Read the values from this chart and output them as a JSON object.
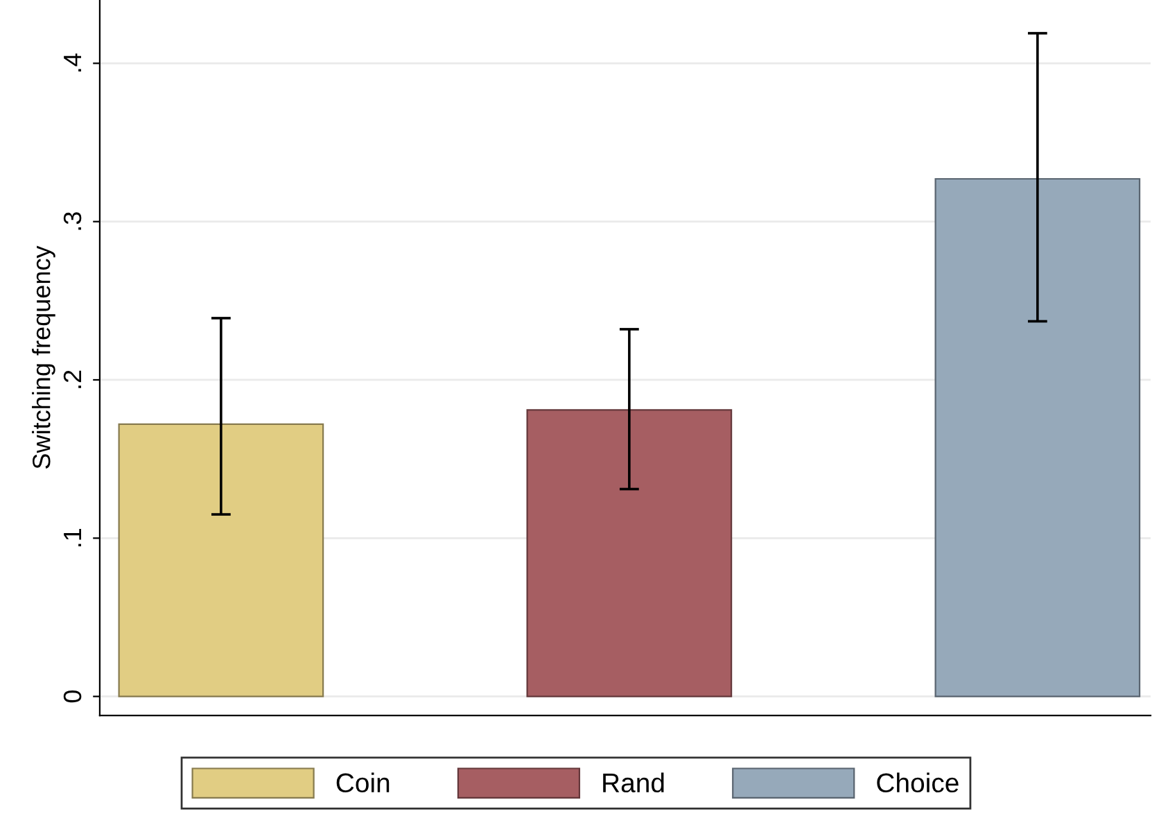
{
  "chart_data": {
    "type": "bar",
    "ylabel": "Switching frequency",
    "categories": [
      null,
      null,
      null
    ],
    "series": [
      {
        "name": "Coin",
        "color": "#e1cd83",
        "values": [
          0.172,
          null,
          null
        ],
        "errors": [
          [
            0.115,
            0.239
          ],
          null,
          null
        ]
      },
      {
        "name": "Rand",
        "color": "#a65e62",
        "values": [
          null,
          0.181,
          null
        ],
        "errors": [
          null,
          [
            0.131,
            0.232
          ],
          null
        ]
      },
      {
        "name": "Choice",
        "color": "#96a9ba",
        "values": [
          null,
          null,
          0.327
        ],
        "errors": [
          null,
          null,
          [
            0.237,
            0.419
          ]
        ]
      }
    ],
    "ylim": [
      -0.012,
      0.44
    ],
    "yticks": [
      {
        "value": 0,
        "label": "0"
      },
      {
        "value": 0.1,
        "label": ".1"
      },
      {
        "value": 0.2,
        "label": ".2"
      },
      {
        "value": 0.3,
        "label": ".3"
      },
      {
        "value": 0.4,
        "label": ".4"
      }
    ],
    "grid": "y",
    "legend": "bottom"
  }
}
